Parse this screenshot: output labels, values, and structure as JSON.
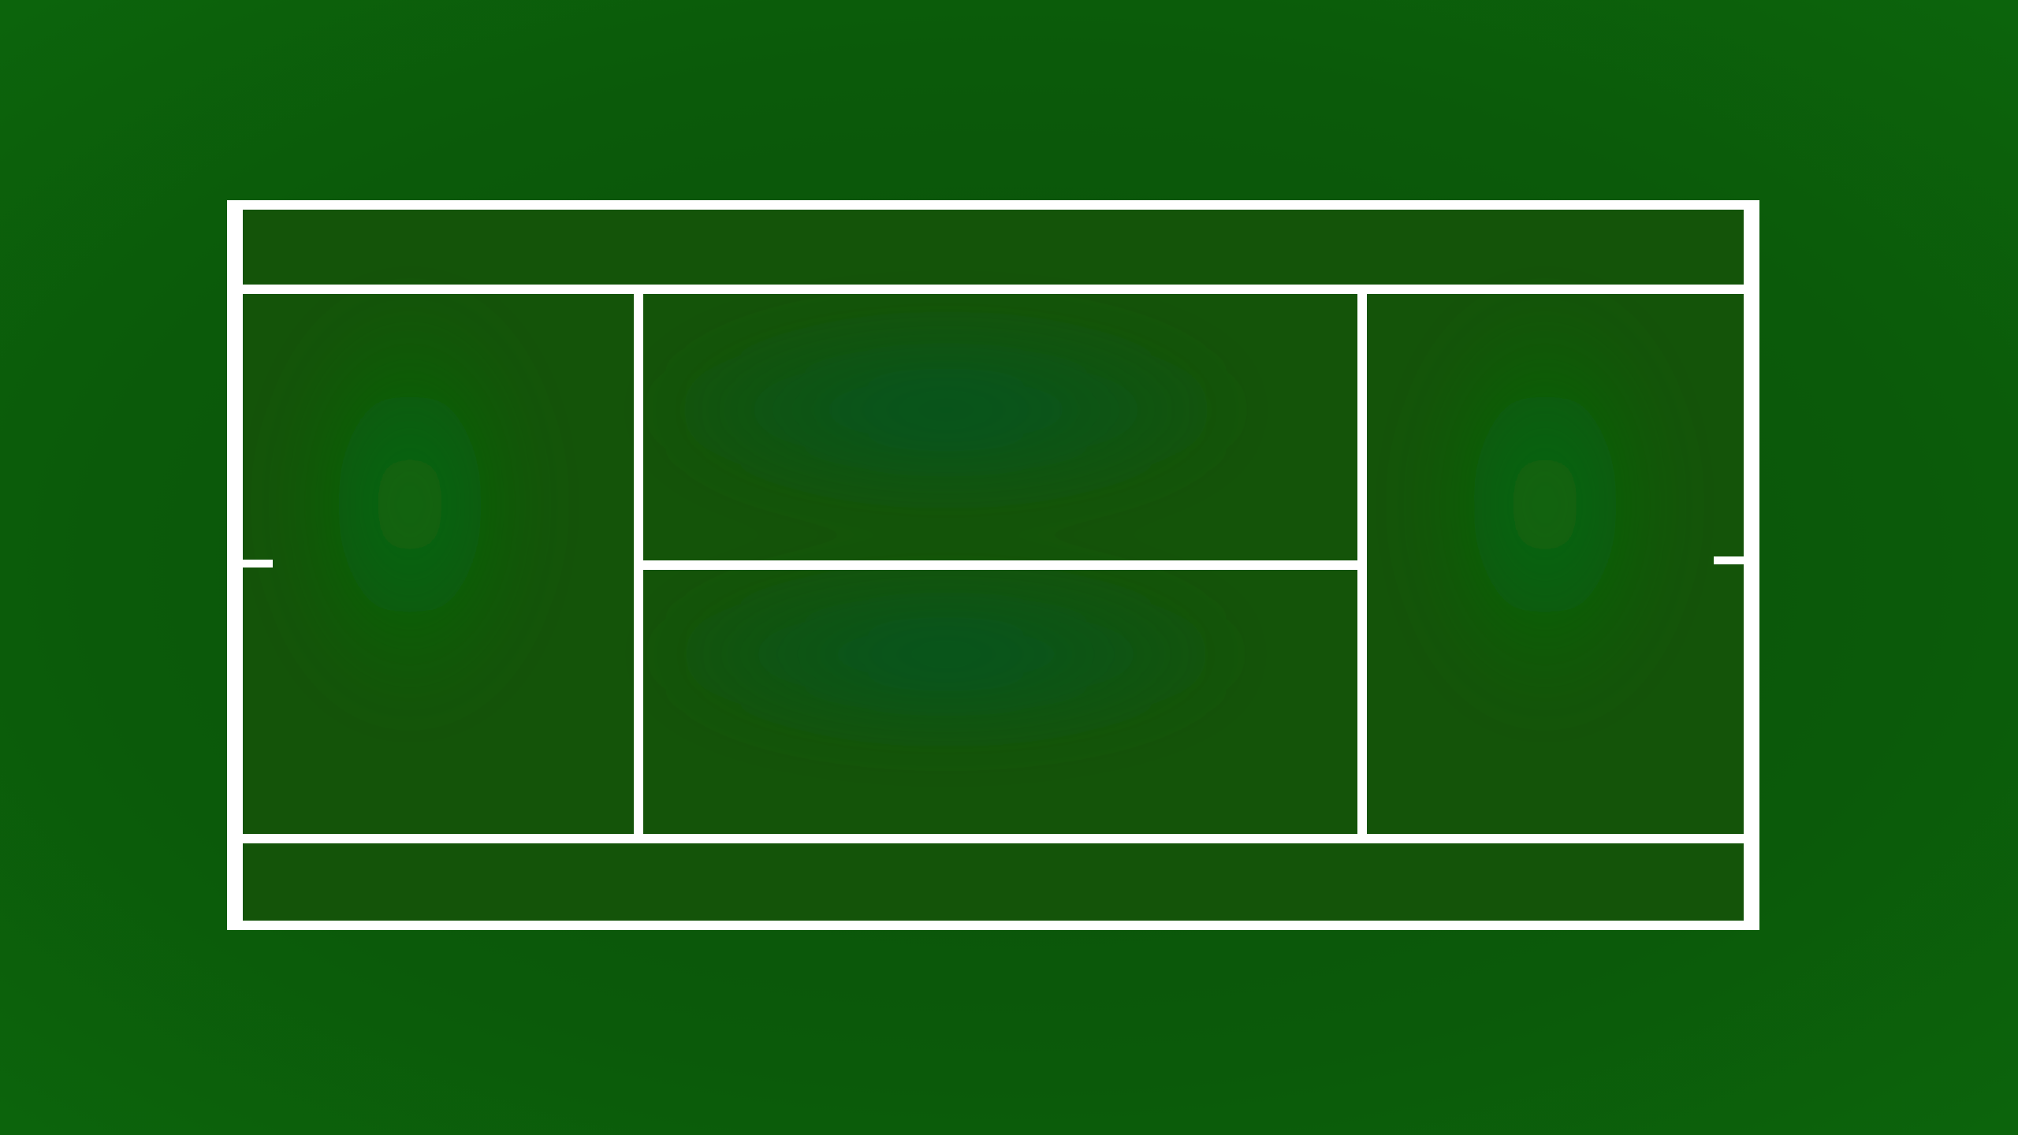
{
  "court": {
    "surface": "grass",
    "view": "top-down",
    "orientation": "horizontal",
    "colors": {
      "background_base": "#0b5c0b",
      "background_light": "#0e6a0c",
      "background_dark": "#0a4e0a",
      "court_fill": "#145409",
      "line": "#ffffff"
    },
    "markings": [
      "baseline-left",
      "baseline-right",
      "doubles-sideline-top",
      "doubles-sideline-bottom",
      "singles-sideline-top",
      "singles-sideline-bottom",
      "service-line-left",
      "service-line-right",
      "center-service-line",
      "center-mark-left",
      "center-mark-right"
    ]
  }
}
